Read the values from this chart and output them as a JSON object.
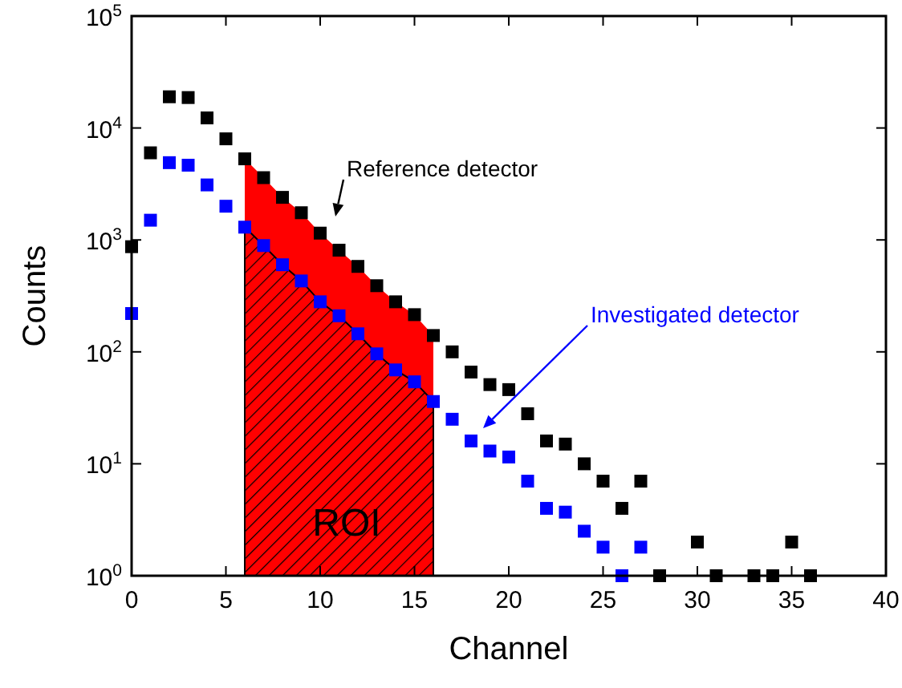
{
  "chart_data": {
    "type": "scatter",
    "xlabel": "Channel",
    "ylabel": "Counts",
    "log": "y",
    "grid": false,
    "xlim": [
      0,
      40
    ],
    "xticks": [
      0,
      5,
      10,
      15,
      20,
      25,
      30,
      35,
      40
    ],
    "ylim": [
      1,
      100000
    ],
    "yticks": [
      {
        "value": 1,
        "label": "10$^{0}$"
      },
      {
        "value": 10,
        "label": "10$^{1}$"
      },
      {
        "value": 100,
        "label": "10$^{2}$"
      },
      {
        "value": 1000,
        "label": "10$^{3}$"
      },
      {
        "value": 10000,
        "label": "10$^{4}$"
      },
      {
        "value": 100000,
        "label": "10$^{5}$"
      }
    ],
    "series": [
      {
        "type": "area",
        "color": "#ff0000",
        "x": [
          6,
          7,
          8,
          9,
          10,
          11,
          12,
          13,
          14,
          15,
          16
        ],
        "values": [
          5300,
          3600,
          2400,
          1750,
          1150,
          810,
          580,
          390,
          280,
          215,
          140
        ]
      },
      {
        "type": "area",
        "color": "#000000",
        "x": [
          6,
          7,
          8,
          9,
          10,
          11,
          12,
          13,
          14,
          15,
          16
        ],
        "values": [
          1300,
          890,
          600,
          430,
          280,
          210,
          145,
          96,
          69,
          54,
          36
        ]
      },
      {
        "marker": "square",
        "color": "#000000",
        "x": [
          0,
          1,
          2,
          3,
          4,
          5,
          6,
          7,
          8,
          9,
          10,
          11,
          12,
          13,
          14,
          15,
          16,
          17,
          18,
          19,
          20,
          21,
          22,
          23,
          24,
          25,
          26,
          27,
          28,
          30,
          31,
          33,
          34,
          35,
          36
        ],
        "values": [
          870,
          6000,
          19000,
          18700,
          12300,
          8000,
          5300,
          3600,
          2400,
          1750,
          1150,
          810,
          580,
          390,
          280,
          215,
          140,
          100,
          66,
          51,
          46,
          28,
          16,
          15,
          10,
          7,
          4,
          7,
          1,
          2,
          1,
          1,
          1,
          2,
          1
        ]
      },
      {
        "marker": "square",
        "color": "#0000ff",
        "x": [
          0,
          1,
          2,
          3,
          4,
          5,
          6,
          7,
          8,
          9,
          10,
          11,
          12,
          13,
          14,
          15,
          16,
          17,
          18,
          19,
          20,
          21,
          22,
          23,
          24,
          25,
          26,
          27
        ],
        "values": [
          220,
          1500,
          4900,
          4650,
          3100,
          2000,
          1300,
          890,
          600,
          430,
          280,
          210,
          145,
          96,
          69,
          54,
          36,
          25,
          16,
          13,
          11.5,
          7,
          4,
          3.7,
          2.5,
          1.8,
          1,
          1.8
        ]
      }
    ],
    "annotations": [
      "Reference detector",
      "Investigated detector",
      "ROI"
    ]
  }
}
